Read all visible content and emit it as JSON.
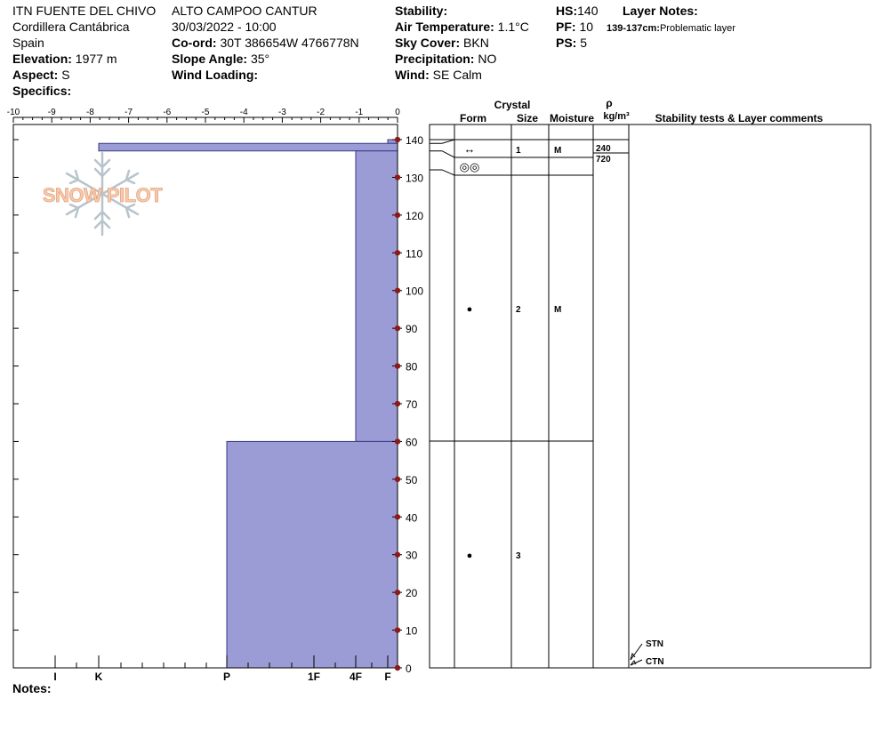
{
  "header": {
    "site": "ITN FUENTE DEL CHIVO",
    "range": "Cordillera Cantábrica",
    "country": "Spain",
    "elevation_label": "Elevation:",
    "elevation": "1977 m",
    "aspect_label": "Aspect:",
    "aspect": "S",
    "specifics_label": "Specifics:",
    "location": "ALTO CAMPOO CANTUR",
    "datetime": "30/03/2022 - 10:00",
    "coord_label": "Co-ord:",
    "coord": "30T 386654W 4766778N",
    "slope_label": "Slope Angle:",
    "slope": "35°",
    "wind_loading_label": "Wind Loading:",
    "stability_label": "Stability:",
    "air_temp_label": "Air Temperature:",
    "air_temp": "1.1°C",
    "sky_label": "Sky Cover:",
    "sky": "BKN",
    "precip_label": "Precipitation:",
    "precip": "NO",
    "wind_label": "Wind:",
    "wind": "SE Calm",
    "hs_label": "HS:",
    "hs": "140",
    "pf_label": "PF:",
    "pf": "10",
    "ps_label": "PS:",
    "ps": "5",
    "layer_notes_label": "Layer Notes:",
    "layer_note_range": "139-137cm:",
    "layer_note_text": "Problematic layer"
  },
  "notes_label": "Notes:",
  "logo_text": "SNOW PILOT",
  "table_headers": {
    "crystal": "Crystal",
    "form": "Form",
    "size": "Size",
    "moisture": "Moisture",
    "rho": "ρ",
    "density_unit": "kg/m³",
    "comments": "Stability tests & Layer comments"
  },
  "chart_data": {
    "type": "bar",
    "temperature_axis": {
      "ticks": [
        "-10",
        "-9",
        "-8",
        "-7",
        "-6",
        "-5",
        "-4",
        "-3",
        "-2",
        "-1",
        "0"
      ],
      "range": [
        -10,
        0
      ]
    },
    "height_axis": {
      "ticks": [
        "140",
        "130",
        "120",
        "110",
        "100",
        "90",
        "80",
        "70",
        "60",
        "50",
        "40",
        "30",
        "20",
        "10",
        "0"
      ],
      "range": [
        0,
        140
      ],
      "unit": "cm"
    },
    "hardness_axis": {
      "labels": [
        "I",
        "K",
        "P",
        "1F",
        "4F",
        "F"
      ]
    },
    "hardness_profile": [
      {
        "top": 140,
        "bottom": 139,
        "hardness": "F"
      },
      {
        "top": 139,
        "bottom": 137,
        "hardness": "K"
      },
      {
        "top": 137,
        "bottom": 60,
        "hardness": "4F"
      },
      {
        "top": 60,
        "bottom": 0,
        "hardness": "P"
      }
    ],
    "layers": [
      {
        "top": 139,
        "bottom": 137,
        "form_symbol": "↔",
        "size": "1",
        "moisture": "M",
        "density": "240"
      },
      {
        "top": 137,
        "bottom": 132,
        "form_symbol": "◎◎",
        "size": "",
        "moisture": "",
        "density": "720"
      },
      {
        "top": 132,
        "bottom": 60,
        "form_symbol": "●",
        "size": "2",
        "moisture": "M",
        "density": ""
      },
      {
        "top": 60,
        "bottom": 0,
        "form_symbol": "●",
        "size": "3",
        "moisture": "",
        "density": ""
      }
    ],
    "stability_tests": [
      {
        "label": "STN",
        "height": 0
      },
      {
        "label": "CTN",
        "height": 0
      }
    ],
    "colors": {
      "bars": "#9b9bd6",
      "bar_border": "#3a3a8a",
      "markers": "#8b1a1a"
    }
  }
}
